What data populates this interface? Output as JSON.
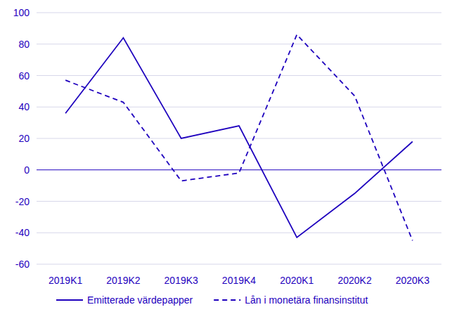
{
  "chart_data": {
    "type": "line",
    "categories": [
      "2019K1",
      "2019K2",
      "2019K3",
      "2019K4",
      "2020K1",
      "2020K2",
      "2020K3"
    ],
    "series": [
      {
        "name": "Emitterade värdepapper",
        "color": "#1e00be",
        "line_style": "solid",
        "values": [
          36,
          84,
          20,
          28,
          -43,
          -15,
          18
        ]
      },
      {
        "name": "Lån i monetära finansinstitut",
        "color": "#1e00be",
        "line_style": "dashed",
        "values": [
          57,
          43,
          -7,
          -2,
          86,
          47,
          -45
        ]
      }
    ],
    "ylim": [
      -60,
      100
    ],
    "yticks": [
      -60,
      -40,
      -20,
      0,
      20,
      40,
      60,
      80,
      100
    ],
    "grid": true,
    "legend": "bottom"
  }
}
